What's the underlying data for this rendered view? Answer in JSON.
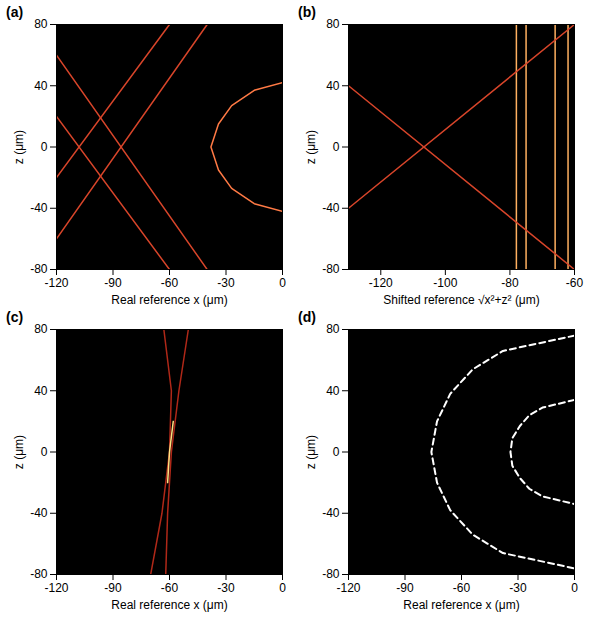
{
  "chart_data": [
    {
      "type": "line",
      "title": "(a)",
      "xlabel": "Real reference x (μm)",
      "ylabel": "z (μm)",
      "xlim": [
        -120,
        0
      ],
      "ylim": [
        -80,
        80
      ],
      "xticks": [
        -120,
        -90,
        -60,
        -30,
        0
      ],
      "yticks": [
        -80,
        -40,
        0,
        40,
        80
      ],
      "series": [
        {
          "color": "#ff7a45",
          "line_style": "solid",
          "x": [
            0,
            -15,
            -27,
            -34,
            -38,
            -34,
            -27,
            -15,
            0
          ],
          "values": [
            42,
            37,
            27,
            15,
            0,
            -15,
            -27,
            -37,
            -42
          ]
        },
        {
          "color": "#d8452a",
          "line_style": "solid",
          "x": [
            -120,
            -40
          ],
          "values": [
            60,
            -80
          ]
        },
        {
          "color": "#d8452a",
          "line_style": "solid",
          "x": [
            -120,
            -40
          ],
          "values": [
            -60,
            80
          ]
        },
        {
          "color": "#d8452a",
          "line_style": "solid",
          "x": [
            -120,
            -60
          ],
          "values": [
            20,
            -80
          ]
        },
        {
          "color": "#d8452a",
          "line_style": "solid",
          "x": [
            -120,
            -60
          ],
          "values": [
            -20,
            80
          ]
        }
      ]
    },
    {
      "type": "line",
      "title": "(b)",
      "xlabel": "Shifted reference √x²+z² (μm)",
      "ylabel": "z (μm)",
      "xlim": [
        -130,
        -60
      ],
      "ylim": [
        -80,
        80
      ],
      "xticks": [
        -120,
        -100,
        -80,
        -60
      ],
      "yticks": [
        -80,
        -40,
        0,
        40,
        80
      ],
      "series": [
        {
          "color": "#ffb060",
          "line_style": "solid",
          "x": [
            -78,
            -78
          ],
          "values": [
            -80,
            80
          ]
        },
        {
          "color": "#ffb060",
          "line_style": "solid",
          "x": [
            -75,
            -75
          ],
          "values": [
            -80,
            80
          ]
        },
        {
          "color": "#ffb060",
          "line_style": "solid",
          "x": [
            -66,
            -66
          ],
          "values": [
            -80,
            80
          ]
        },
        {
          "color": "#ffb060",
          "line_style": "solid",
          "x": [
            -62,
            -62
          ],
          "values": [
            -80,
            80
          ]
        },
        {
          "color": "#d8452a",
          "line_style": "solid",
          "x": [
            -130,
            -60
          ],
          "values": [
            -40,
            80
          ]
        },
        {
          "color": "#d8452a",
          "line_style": "solid",
          "x": [
            -130,
            -60
          ],
          "values": [
            40,
            -80
          ]
        }
      ]
    },
    {
      "type": "line",
      "title": "(c)",
      "xlabel": "Real reference x (μm)",
      "ylabel": "z (μm)",
      "xlim": [
        -120,
        0
      ],
      "ylim": [
        -80,
        80
      ],
      "xticks": [
        -120,
        -90,
        -60,
        -30,
        0
      ],
      "yticks": [
        -80,
        -40,
        0,
        40,
        80
      ],
      "series": [
        {
          "color": "#b02818",
          "line_style": "solid",
          "x": [
            -63,
            -59,
            -60,
            -64,
            -70
          ],
          "values": [
            80,
            40,
            0,
            -40,
            -80
          ]
        },
        {
          "color": "#b02818",
          "line_style": "solid",
          "x": [
            -50,
            -55,
            -59,
            -61,
            -62
          ],
          "values": [
            80,
            40,
            0,
            -40,
            -80
          ]
        },
        {
          "color": "#ffe080",
          "line_style": "solid",
          "x": [
            -58,
            -60,
            -61
          ],
          "values": [
            20,
            0,
            -20
          ]
        }
      ]
    },
    {
      "type": "line",
      "title": "(d)",
      "xlabel": "Real reference x (μm)",
      "ylabel": "z (μm)",
      "xlim": [
        -120,
        0
      ],
      "ylim": [
        -80,
        80
      ],
      "xticks": [
        -120,
        -90,
        -60,
        -30,
        0
      ],
      "yticks": [
        -80,
        -40,
        0,
        40,
        80
      ],
      "series": [
        {
          "color": "#ffffff",
          "line_style": "dashed",
          "x": [
            0,
            -38,
            -54,
            -66,
            -73,
            -76,
            -73,
            -66,
            -54,
            -38,
            0
          ],
          "values": [
            76,
            66,
            54,
            38,
            20,
            0,
            -20,
            -38,
            -54,
            -66,
            -76
          ]
        },
        {
          "color": "#ffffff",
          "line_style": "dashed",
          "x": [
            0,
            -17,
            -24,
            -29,
            -33,
            -34,
            -33,
            -29,
            -24,
            -17,
            0
          ],
          "values": [
            34,
            29,
            24,
            17,
            9,
            0,
            -9,
            -17,
            -24,
            -29,
            -34
          ]
        }
      ]
    }
  ]
}
